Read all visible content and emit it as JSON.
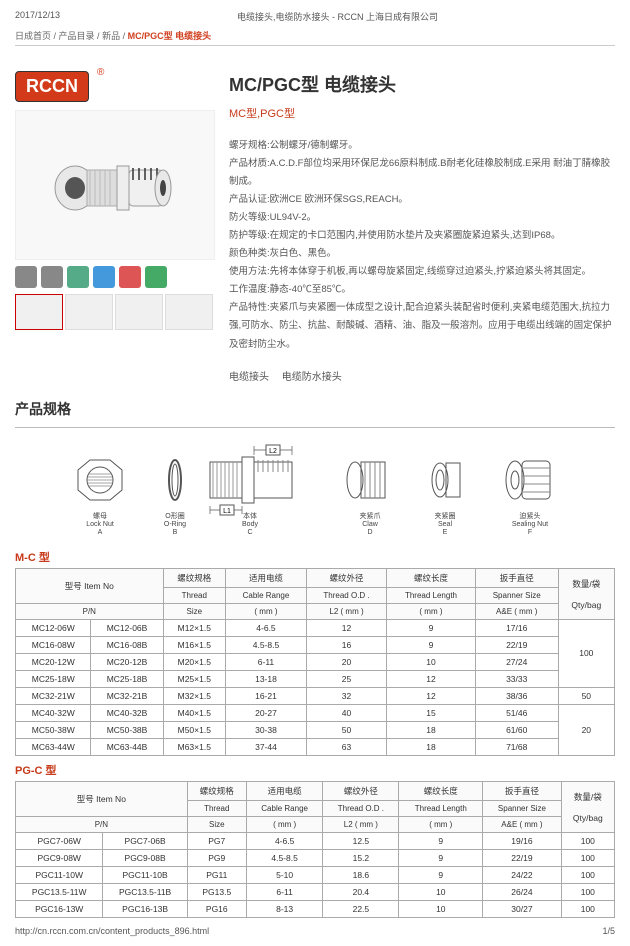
{
  "meta": {
    "date": "2017/12/13",
    "site_title": "电缆接头,电缆防水接头 - RCCN 上海日成有限公司",
    "url": "http://cn.rccn.com.cn/content_products_896.html",
    "page": "1/5"
  },
  "breadcrumb": {
    "home": "日成首页",
    "catalog": "产品目录",
    "new": "新品",
    "current": "MC/PGC型 电缆接头"
  },
  "logo": "RCCN",
  "title": "MC/PGC型 电缆接头",
  "subtype": "MC型,PGC型",
  "desc": [
    "螺牙规格:公制螺牙/德制螺牙。",
    "产品材质:A.C.D.F部位均采用环保尼龙66原料制成.B耐老化硅橡胶制成.E采用 耐油丁腈橡胶制成。",
    "产品认证:欧洲CE 欧洲环保SGS,REACH。",
    "防火等级:UL94V-2。",
    "防护等级:在规定的卡口范围内,并使用防水垫片及夹紧圈旋紧迫紧头,达到IP68。",
    "颜色种类:灰白色、黑色。",
    "使用方法:先将本体穿于机板,再以螺母旋紧固定,线缆穿过迫紧头,拧紧迫紧头将其固定。",
    "工作温度:静态-40℃至85℃。",
    "产品特性:夹紧爪与夹紧圈一体成型之设计,配合迫紧头装配省时便利,夹紧电缆范围大,抗拉力强,可防水、防尘、抗盐、耐酸碱、酒精、油、脂及一般溶剂。应用于电缆出线端的固定保护及密封防尘水。"
  ],
  "tags": [
    "电缆接头",
    "电缆防水接头"
  ],
  "spec_section": "产品规格",
  "partLabels": [
    {
      "cn": "螺母",
      "en": "Lock Nut",
      "sub": "A"
    },
    {
      "cn": "O形圈",
      "en": "O-Ring",
      "sub": "B"
    },
    {
      "cn": "本体",
      "en": "Body",
      "sub": "C"
    },
    {
      "cn": "夹紧爪",
      "en": "Claw",
      "sub": "D"
    },
    {
      "cn": "夹紧圈",
      "en": "Seal",
      "sub": "E"
    },
    {
      "cn": "迫紧头",
      "en": "Sealing Nut",
      "sub": "F"
    }
  ],
  "dims": {
    "L1": "L1",
    "L2": "L2"
  },
  "table_mc": {
    "title": "M-C 型",
    "headers": {
      "item": "型号 Item No",
      "thread": "螺纹规格",
      "cable": "适用电缆",
      "od": "螺纹外径",
      "len": "螺纹长度",
      "span": "扳手直径",
      "qty": "数量/袋"
    },
    "sub": {
      "pn": "P/N",
      "thread": "Thread",
      "cable": "Cable Range",
      "od": "Thread O.D .",
      "len": "Thread Length",
      "span": "Spanner Size",
      "qty": "Qty/bag"
    },
    "unit": {
      "size": "Size",
      "mm": "( mm )",
      "l2": "L2 ( mm )",
      "ae": "A&E ( mm )"
    },
    "rows": [
      [
        "MC12-06W",
        "MC12-06B",
        "M12×1.5",
        "4-6.5",
        "12",
        "9",
        "17/16"
      ],
      [
        "MC16-08W",
        "MC16-08B",
        "M16×1.5",
        "4.5-8.5",
        "16",
        "9",
        "22/19"
      ],
      [
        "MC20-12W",
        "MC20-12B",
        "M20×1.5",
        "6-11",
        "20",
        "10",
        "27/24"
      ],
      [
        "MC25-18W",
        "MC25-18B",
        "M25×1.5",
        "13-18",
        "25",
        "12",
        "33/33"
      ],
      [
        "MC32-21W",
        "MC32-21B",
        "M32×1.5",
        "16-21",
        "32",
        "12",
        "38/36"
      ],
      [
        "MC40-32W",
        "MC40-32B",
        "M40×1.5",
        "20-27",
        "40",
        "15",
        "51/46"
      ],
      [
        "MC50-38W",
        "MC50-38B",
        "M50×1.5",
        "30-38",
        "50",
        "18",
        "61/60"
      ],
      [
        "MC63-44W",
        "MC63-44B",
        "M63×1.5",
        "37-44",
        "63",
        "18",
        "71/68"
      ]
    ],
    "qtys": [
      "100",
      "50",
      "20"
    ]
  },
  "table_pgc": {
    "title": "PG-C 型",
    "rows": [
      [
        "PGC7-06W",
        "PGC7-06B",
        "PG7",
        "4-6.5",
        "12.5",
        "9",
        "19/16",
        "100"
      ],
      [
        "PGC9-08W",
        "PGC9-08B",
        "PG9",
        "4.5-8.5",
        "15.2",
        "9",
        "22/19",
        "100"
      ],
      [
        "PGC11-10W",
        "PGC11-10B",
        "PG11",
        "5-10",
        "18.6",
        "9",
        "24/22",
        "100"
      ],
      [
        "PGC13.5-11W",
        "PGC13.5-11B",
        "PG13.5",
        "6-11",
        "20.4",
        "10",
        "26/24",
        "100"
      ],
      [
        "PGC16-13W",
        "PGC16-13B",
        "PG16",
        "8-13",
        "22.5",
        "10",
        "30/27",
        "100"
      ]
    ]
  }
}
